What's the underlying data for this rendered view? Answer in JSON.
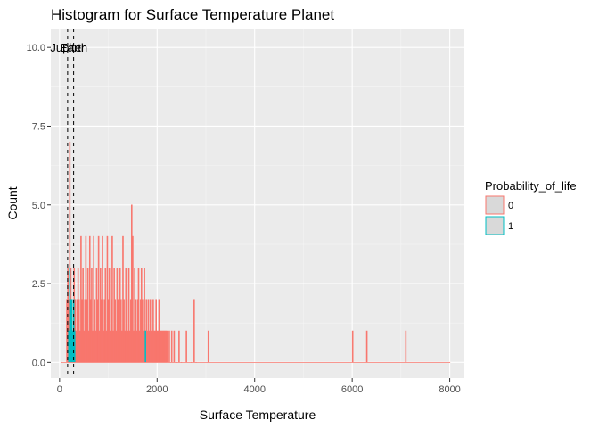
{
  "chart_data": {
    "type": "bar",
    "title": "Histogram for Surface Temperature Planet",
    "xlabel": "Surface Temperature",
    "ylabel": "Count",
    "xlim": [
      -180,
      8300
    ],
    "ylim": [
      -0.5,
      10.6
    ],
    "x_ticks": [
      0,
      2000,
      4000,
      6000,
      8000
    ],
    "x_tick_labels": [
      "0",
      "2000",
      "4000",
      "6000",
      "8000"
    ],
    "y_ticks": [
      0,
      2.5,
      5,
      7.5,
      10
    ],
    "y_tick_labels": [
      "0.0",
      "2.5",
      "5.0",
      "7.5",
      "10.0"
    ],
    "grid": true,
    "background": "#ebebeb",
    "legend": {
      "title": "Probability_of_life",
      "placement": "right",
      "entries": [
        {
          "label": "0",
          "color": "#f8766d"
        },
        {
          "label": "1",
          "color": "#00bfc4"
        }
      ]
    },
    "vlines": [
      {
        "x": 165,
        "label": "Jupiter"
      },
      {
        "x": 288,
        "label": "Earth"
      }
    ],
    "vline_label_y": 10,
    "series": [
      {
        "name": "0",
        "color": "#f8766d",
        "bins": [
          [
            30,
            0
          ],
          [
            150,
            2
          ],
          [
            170,
            3
          ],
          [
            190,
            2
          ],
          [
            210,
            7
          ],
          [
            230,
            3
          ],
          [
            250,
            2
          ],
          [
            270,
            1
          ],
          [
            300,
            3
          ],
          [
            320,
            2
          ],
          [
            340,
            1
          ],
          [
            360,
            2
          ],
          [
            380,
            3
          ],
          [
            400,
            2
          ],
          [
            420,
            1
          ],
          [
            440,
            4
          ],
          [
            460,
            2
          ],
          [
            480,
            3
          ],
          [
            500,
            1
          ],
          [
            520,
            2
          ],
          [
            540,
            4
          ],
          [
            560,
            2
          ],
          [
            580,
            3
          ],
          [
            600,
            1
          ],
          [
            620,
            4
          ],
          [
            640,
            2
          ],
          [
            660,
            3
          ],
          [
            680,
            1
          ],
          [
            700,
            4
          ],
          [
            720,
            2
          ],
          [
            740,
            1
          ],
          [
            760,
            3
          ],
          [
            780,
            2
          ],
          [
            800,
            4
          ],
          [
            820,
            1
          ],
          [
            840,
            3
          ],
          [
            860,
            2
          ],
          [
            880,
            4
          ],
          [
            900,
            1
          ],
          [
            920,
            2
          ],
          [
            940,
            3
          ],
          [
            960,
            1
          ],
          [
            980,
            4
          ],
          [
            1000,
            2
          ],
          [
            1020,
            3
          ],
          [
            1040,
            1
          ],
          [
            1060,
            2
          ],
          [
            1080,
            4
          ],
          [
            1100,
            1
          ],
          [
            1120,
            3
          ],
          [
            1140,
            2
          ],
          [
            1160,
            1
          ],
          [
            1180,
            3
          ],
          [
            1200,
            2
          ],
          [
            1220,
            1
          ],
          [
            1240,
            3
          ],
          [
            1260,
            2
          ],
          [
            1280,
            1
          ],
          [
            1300,
            4
          ],
          [
            1320,
            2
          ],
          [
            1340,
            1
          ],
          [
            1360,
            3
          ],
          [
            1380,
            2
          ],
          [
            1400,
            1
          ],
          [
            1420,
            3
          ],
          [
            1440,
            1
          ],
          [
            1460,
            2
          ],
          [
            1480,
            5
          ],
          [
            1500,
            4
          ],
          [
            1520,
            1
          ],
          [
            1540,
            3
          ],
          [
            1560,
            2
          ],
          [
            1580,
            1
          ],
          [
            1600,
            2
          ],
          [
            1620,
            3
          ],
          [
            1640,
            1
          ],
          [
            1660,
            2
          ],
          [
            1680,
            3
          ],
          [
            1700,
            2
          ],
          [
            1720,
            1
          ],
          [
            1740,
            3
          ],
          [
            1760,
            1
          ],
          [
            1780,
            2
          ],
          [
            1800,
            1
          ],
          [
            1820,
            2
          ],
          [
            1840,
            1
          ],
          [
            1860,
            2
          ],
          [
            1880,
            1
          ],
          [
            1900,
            1
          ],
          [
            1920,
            2
          ],
          [
            1940,
            1
          ],
          [
            1960,
            1
          ],
          [
            1980,
            2
          ],
          [
            2000,
            1
          ],
          [
            2020,
            1
          ],
          [
            2040,
            2
          ],
          [
            2060,
            1
          ],
          [
            2080,
            1
          ],
          [
            2100,
            1
          ],
          [
            2120,
            1
          ],
          [
            2140,
            1
          ],
          [
            2160,
            1
          ],
          [
            2180,
            1
          ],
          [
            2200,
            1
          ],
          [
            2250,
            1
          ],
          [
            2300,
            1
          ],
          [
            2350,
            1
          ],
          [
            2400,
            0
          ],
          [
            2450,
            1
          ],
          [
            2500,
            0
          ],
          [
            2600,
            1
          ],
          [
            2700,
            0
          ],
          [
            2760,
            2
          ],
          [
            2800,
            0
          ],
          [
            3050,
            1
          ],
          [
            6010,
            1
          ],
          [
            6300,
            1
          ],
          [
            7100,
            1
          ],
          [
            8000,
            0
          ]
        ]
      },
      {
        "name": "1",
        "color": "#00bfc4",
        "bins": [
          [
            190,
            1
          ],
          [
            210,
            3
          ],
          [
            230,
            2
          ],
          [
            250,
            2
          ],
          [
            270,
            1
          ],
          [
            290,
            2
          ],
          [
            310,
            1
          ],
          [
            1760,
            1
          ]
        ]
      }
    ]
  }
}
